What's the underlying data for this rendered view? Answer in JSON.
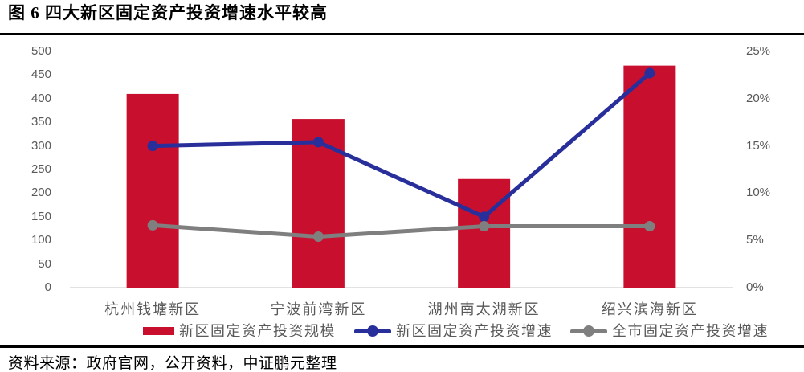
{
  "title": "图 6 四大新区固定资产投资增速水平较高",
  "source_note": "资料来源：政府官网，公开资料，中证鹏元整理",
  "colors": {
    "bar": "#C8102E",
    "line_new_district": "#282F9B",
    "line_city": "#7F7F7F",
    "axis_text": "#595959",
    "baseline": "#D9D9D9",
    "rule": "#000000"
  },
  "chart_data": {
    "type": "bar",
    "subtype": "bar+line combo, dual axis",
    "title": "图 6 四大新区固定资产投资增速水平较高",
    "categories": [
      "杭州钱塘新区",
      "宁波前湾新区",
      "湖州南太湖新区",
      "绍兴滨海新区"
    ],
    "series": [
      {
        "name": "新区固定资产投资规模",
        "type": "bar",
        "axis": "left",
        "color": "#C8102E",
        "values": [
          410,
          357,
          230,
          470
        ]
      },
      {
        "name": "新区固定资产投资增速",
        "type": "line",
        "axis": "right",
        "color": "#282F9B",
        "values_pct": [
          15.0,
          15.4,
          7.5,
          22.7
        ]
      },
      {
        "name": "全市固定资产投资增速",
        "type": "line",
        "axis": "right",
        "color": "#7F7F7F",
        "values_pct": [
          6.6,
          5.4,
          6.5,
          6.5
        ]
      }
    ],
    "left_axis": {
      "min": 0,
      "max": 500,
      "step": 50,
      "tick_labels": [
        "0",
        "50",
        "100",
        "150",
        "200",
        "250",
        "300",
        "350",
        "400",
        "450",
        "500"
      ]
    },
    "right_axis": {
      "min": 0,
      "max": 25,
      "step": 5,
      "tick_labels": [
        "0%",
        "5%",
        "10%",
        "15%",
        "20%",
        "25%"
      ]
    },
    "grid": false,
    "legend_position": "bottom",
    "legend": [
      {
        "label": "新区固定资产投资规模",
        "marker": "bar",
        "color": "#C8102E"
      },
      {
        "label": "新区固定资产投资增速",
        "marker": "line-dot",
        "color": "#282F9B"
      },
      {
        "label": "全市固定资产投资增速",
        "marker": "line-dot",
        "color": "#7F7F7F"
      }
    ]
  }
}
